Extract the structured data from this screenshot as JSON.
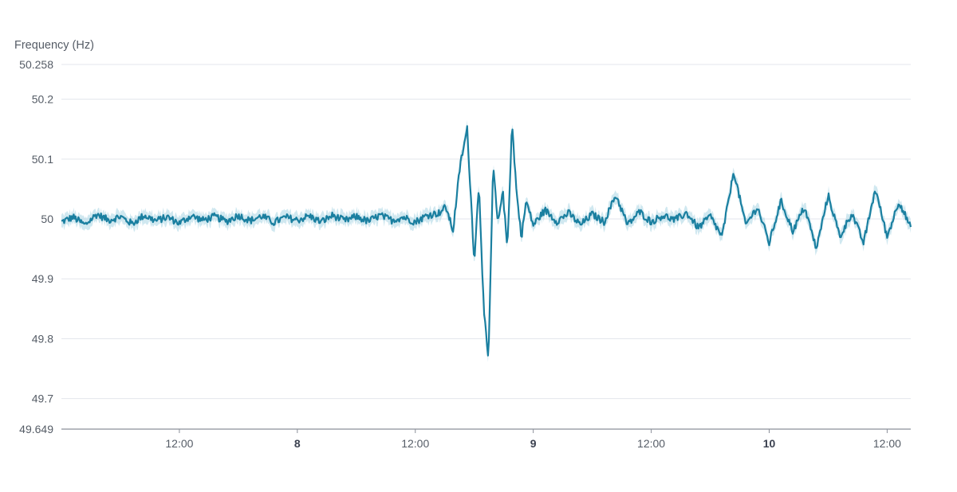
{
  "chart_data": {
    "type": "line",
    "ylabel": "Frequency (Hz)",
    "ylim": [
      49.649,
      50.258
    ],
    "yticks": [
      "49.649",
      "49.7",
      "49.8",
      "49.9",
      "50",
      "50.1",
      "50.2",
      "50.258"
    ],
    "xlim_days": [
      7.0,
      10.6
    ],
    "xticks": [
      {
        "label": "12:00",
        "major": false
      },
      {
        "label": "8",
        "major": true
      },
      {
        "label": "12:00",
        "major": false
      },
      {
        "label": "9",
        "major": true
      },
      {
        "label": "12:00",
        "major": false
      },
      {
        "label": "10",
        "major": true
      },
      {
        "label": "12:00",
        "major": false
      }
    ],
    "grid": true,
    "colors": {
      "line": "#1a7fa0",
      "band": "#a9d5e3",
      "grid": "#e3e6ec",
      "axis": "#8a8f99"
    },
    "series": [
      {
        "values_key": "mean frequency",
        "x": [
          7.0,
          7.05,
          7.1,
          7.15,
          7.2,
          7.25,
          7.3,
          7.35,
          7.4,
          7.45,
          7.5,
          7.55,
          7.6,
          7.65,
          7.7,
          7.75,
          7.8,
          7.85,
          7.9,
          7.95,
          8.0,
          8.05,
          8.1,
          8.15,
          8.2,
          8.25,
          8.3,
          8.35,
          8.4,
          8.45,
          8.5,
          8.55,
          8.6,
          8.63,
          8.66,
          8.69,
          8.72,
          8.75,
          8.77,
          8.79,
          8.81,
          8.83,
          8.85,
          8.87,
          8.89,
          8.91,
          8.93,
          8.95,
          8.97,
          9.0,
          9.05,
          9.1,
          9.15,
          9.2,
          9.25,
          9.3,
          9.35,
          9.4,
          9.45,
          9.5,
          9.55,
          9.6,
          9.65,
          9.7,
          9.75,
          9.8,
          9.85,
          9.9,
          9.95,
          10.0,
          10.05,
          10.1,
          10.15,
          10.2,
          10.25,
          10.3,
          10.35,
          10.4,
          10.45,
          10.5,
          10.55,
          10.6
        ],
        "y": [
          49.995,
          50.003,
          49.99,
          50.008,
          49.998,
          50.004,
          49.992,
          50.006,
          49.997,
          50.003,
          49.993,
          50.005,
          49.998,
          50.004,
          49.996,
          50.006,
          49.997,
          50.005,
          49.994,
          50.003,
          49.998,
          50.005,
          49.995,
          50.006,
          49.997,
          50.004,
          49.996,
          50.006,
          49.998,
          50.003,
          49.995,
          50.006,
          50.01,
          50.02,
          49.98,
          50.09,
          50.15,
          49.93,
          50.06,
          49.85,
          49.76,
          50.09,
          49.99,
          50.05,
          49.95,
          50.16,
          50.04,
          49.97,
          50.03,
          49.99,
          50.015,
          49.996,
          50.01,
          49.99,
          50.008,
          49.995,
          50.04,
          49.99,
          50.012,
          49.995,
          50.006,
          49.998,
          50.01,
          49.985,
          50.005,
          49.97,
          50.08,
          49.99,
          50.02,
          49.96,
          50.03,
          49.98,
          50.02,
          49.95,
          50.04,
          49.97,
          50.01,
          49.96,
          50.05,
          49.97,
          50.03,
          49.985
        ]
      }
    ]
  }
}
